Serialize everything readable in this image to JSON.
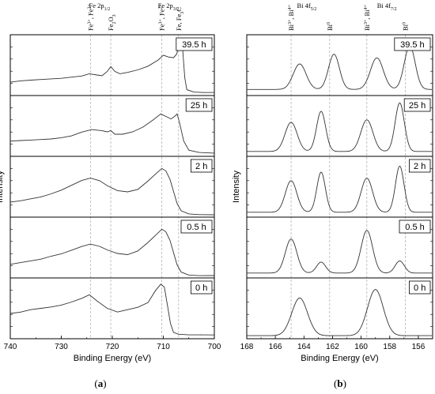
{
  "panels": [
    {
      "label": "(a)",
      "label_prefix": "(",
      "label_letter": "a",
      "label_suffix": ")",
      "chart_data": {
        "type": "line",
        "xlabel": "Binding Energy (eV)",
        "ylabel": "Intensity",
        "xlim": [
          740,
          700
        ],
        "xticks": [
          740,
          730,
          720,
          710,
          700
        ],
        "grid": false,
        "reference_lines": [
          {
            "x": 724.3,
            "label": "Fe3+, Fe2+",
            "base": "Fe",
            "sup1": "3+",
            "mid": ", Fe",
            "sup2": "2+"
          },
          {
            "x": 720.3,
            "label": "Fe2O3",
            "base": "Fe",
            "sub1": "2",
            "mid": "O",
            "sub2": "3"
          },
          {
            "x": 710.3,
            "label": "Fe3+, Fe2+",
            "base": "Fe",
            "sup1": "3+",
            "mid": ", Fe",
            "sup2": "2+"
          },
          {
            "x": 707.0,
            "label": "Fe, Fe3C",
            "base": "Fe, Fe",
            "sub1": "3",
            "mid": "C"
          }
        ],
        "group_labels": [
          {
            "x": 722.5,
            "label": "Fe 2p1/2",
            "base": "Fe 2p",
            "sub": "1/2"
          },
          {
            "x": 709.0,
            "label": "Fe 2p3/2",
            "base": "Fe 2p",
            "sub": "3/2"
          }
        ],
        "series": [
          {
            "name": "39.5 h",
            "x": [
              740,
              738,
              736,
              734,
              732,
              730,
              728,
              726,
              724.5,
              723,
              722,
              721,
              720.3,
              719.5,
              718.5,
              717,
              715,
              713,
              711,
              710,
              709,
              708,
              707.4,
              707,
              706.6,
              706.2,
              705.8,
              705.4,
              704,
              702,
              700
            ],
            "y": [
              0.22,
              0.24,
              0.25,
              0.26,
              0.27,
              0.28,
              0.3,
              0.32,
              0.36,
              0.34,
              0.33,
              0.4,
              0.48,
              0.4,
              0.36,
              0.38,
              0.42,
              0.48,
              0.58,
              0.66,
              0.63,
              0.62,
              0.68,
              0.8,
              0.88,
              0.76,
              0.3,
              0.1,
              0.06,
              0.05,
              0.05
            ]
          },
          {
            "name": "25 h",
            "x": [
              740,
              738,
              736,
              734,
              732,
              730,
              728,
              726,
              724,
              722,
              721,
              720.3,
              719.5,
              718,
              716,
              714,
              712,
              710.5,
              709.5,
              708.5,
              707.8,
              707.3,
              706.8,
              706,
              705,
              703,
              700
            ],
            "y": [
              0.25,
              0.26,
              0.27,
              0.28,
              0.29,
              0.31,
              0.34,
              0.4,
              0.44,
              0.42,
              0.4,
              0.42,
              0.36,
              0.36,
              0.4,
              0.48,
              0.6,
              0.7,
              0.66,
              0.62,
              0.66,
              0.7,
              0.55,
              0.25,
              0.1,
              0.06,
              0.05
            ]
          },
          {
            "name": "2 h",
            "x": [
              740,
              738,
              736,
              734,
              732,
              730,
              728,
              726,
              724.3,
              722.5,
              721,
              719,
              717,
              715,
              713,
              711,
              710.3,
              709.5,
              708.7,
              708,
              707.3,
              706.5,
              705,
              703,
              700
            ],
            "y": [
              0.25,
              0.27,
              0.3,
              0.33,
              0.38,
              0.44,
              0.52,
              0.6,
              0.64,
              0.6,
              0.52,
              0.44,
              0.42,
              0.46,
              0.6,
              0.75,
              0.8,
              0.76,
              0.62,
              0.42,
              0.22,
              0.1,
              0.05,
              0.04,
              0.04
            ]
          },
          {
            "name": "0.5 h",
            "x": [
              740,
              738,
              736,
              734,
              732,
              730,
              728,
              726,
              724.3,
              722.5,
              721,
              719,
              717,
              715,
              713,
              711,
              710.3,
              709.5,
              708.7,
              708,
              707.3,
              706.5,
              705,
              703,
              700
            ],
            "y": [
              0.22,
              0.25,
              0.28,
              0.31,
              0.36,
              0.4,
              0.46,
              0.52,
              0.56,
              0.52,
              0.46,
              0.4,
              0.38,
              0.44,
              0.58,
              0.74,
              0.8,
              0.76,
              0.62,
              0.42,
              0.22,
              0.1,
              0.05,
              0.04,
              0.04
            ]
          },
          {
            "name": "0 h",
            "x": [
              740,
              738,
              736,
              734,
              732,
              730,
              728,
              726,
              724.5,
              723,
              721,
              719,
              717,
              715,
              713,
              711.5,
              710.5,
              709.8,
              709.2,
              708.6,
              708,
              707,
              705,
              703,
              700
            ],
            "y": [
              0.42,
              0.44,
              0.48,
              0.5,
              0.52,
              0.55,
              0.6,
              0.66,
              0.72,
              0.62,
              0.5,
              0.44,
              0.48,
              0.52,
              0.6,
              0.8,
              0.9,
              0.85,
              0.55,
              0.25,
              0.1,
              0.07,
              0.06,
              0.06,
              0.06
            ]
          }
        ]
      }
    },
    {
      "label": "(b)",
      "label_prefix": "(",
      "label_letter": "b",
      "label_suffix": ")",
      "chart_data": {
        "type": "line",
        "xlabel": "Binding Energy (eV)",
        "ylabel": "Intensity",
        "xlim": [
          168,
          155
        ],
        "xticks": [
          168,
          166,
          164,
          162,
          160,
          158,
          156
        ],
        "grid": false,
        "reference_lines": [
          {
            "x": 164.9,
            "label": "Bi3+, Bi4+",
            "base": "Bi",
            "sup1": "3+",
            "mid": ", Bi",
            "sup2": "4+"
          },
          {
            "x": 162.2,
            "label": "Bi0",
            "base": "Bi",
            "sup1": "0"
          },
          {
            "x": 159.6,
            "label": "Bi3+, Bi4+",
            "base": "Bi",
            "sup1": "3+",
            "mid": ", Bi",
            "sup2": "4+"
          },
          {
            "x": 156.9,
            "label": "Bi0",
            "base": "Bi",
            "sup1": "0"
          }
        ],
        "group_labels": [
          {
            "x": 163.8,
            "label": "Bi 4f5/2",
            "base": "Bi 4f",
            "sub": "5/2"
          },
          {
            "x": 158.2,
            "label": "Bi 4f7/2",
            "base": "Bi 4f",
            "sub": "7/2"
          }
        ],
        "series": [
          {
            "name": "39.5 h",
            "peaks": [
              {
                "center": 164.3,
                "height": 0.42,
                "width": 0.45
              },
              {
                "center": 161.9,
                "height": 0.58,
                "width": 0.38
              },
              {
                "center": 158.9,
                "height": 0.52,
                "width": 0.45
              },
              {
                "center": 156.6,
                "height": 0.72,
                "width": 0.38
              }
            ],
            "baseline": 0.1
          },
          {
            "name": "25 h",
            "peaks": [
              {
                "center": 164.9,
                "height": 0.48,
                "width": 0.42
              },
              {
                "center": 162.8,
                "height": 0.66,
                "width": 0.32
              },
              {
                "center": 159.6,
                "height": 0.52,
                "width": 0.42
              },
              {
                "center": 157.3,
                "height": 0.8,
                "width": 0.32
              }
            ],
            "baseline": 0.08
          },
          {
            "name": "2 h",
            "peaks": [
              {
                "center": 164.9,
                "height": 0.52,
                "width": 0.4
              },
              {
                "center": 162.8,
                "height": 0.66,
                "width": 0.3
              },
              {
                "center": 159.6,
                "height": 0.56,
                "width": 0.4
              },
              {
                "center": 157.3,
                "height": 0.76,
                "width": 0.3
              }
            ],
            "baseline": 0.08
          },
          {
            "name": "0.5 h",
            "peaks": [
              {
                "center": 164.9,
                "height": 0.56,
                "width": 0.4
              },
              {
                "center": 162.8,
                "height": 0.18,
                "width": 0.32
              },
              {
                "center": 159.6,
                "height": 0.7,
                "width": 0.4
              },
              {
                "center": 157.3,
                "height": 0.2,
                "width": 0.32
              }
            ],
            "baseline": 0.08
          },
          {
            "name": "0 h",
            "peaks": [
              {
                "center": 164.3,
                "height": 0.62,
                "width": 0.55
              },
              {
                "center": 159.0,
                "height": 0.76,
                "width": 0.55
              }
            ],
            "baseline": 0.05
          }
        ]
      }
    }
  ]
}
